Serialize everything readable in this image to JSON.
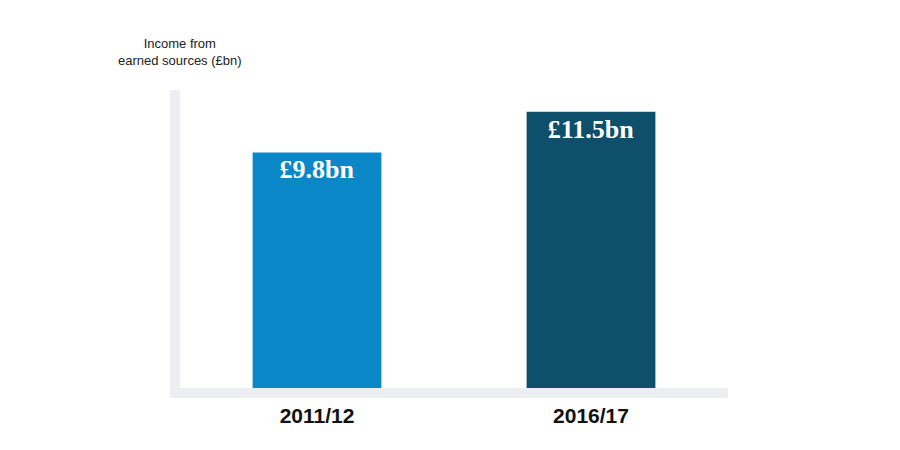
{
  "chart_data": {
    "type": "bar",
    "y_label": "Income from\nearned sources (£bn)",
    "categories": [
      "2011/12",
      "2016/17"
    ],
    "values": [
      9.8,
      11.5
    ],
    "value_labels": [
      "£9.8bn",
      "£11.5bn"
    ],
    "colors": [
      "#0a87c6",
      "#0e4f6c"
    ],
    "ylim": [
      0,
      12.4
    ],
    "data_labels": true,
    "tick_labels": "x",
    "grid": false
  }
}
